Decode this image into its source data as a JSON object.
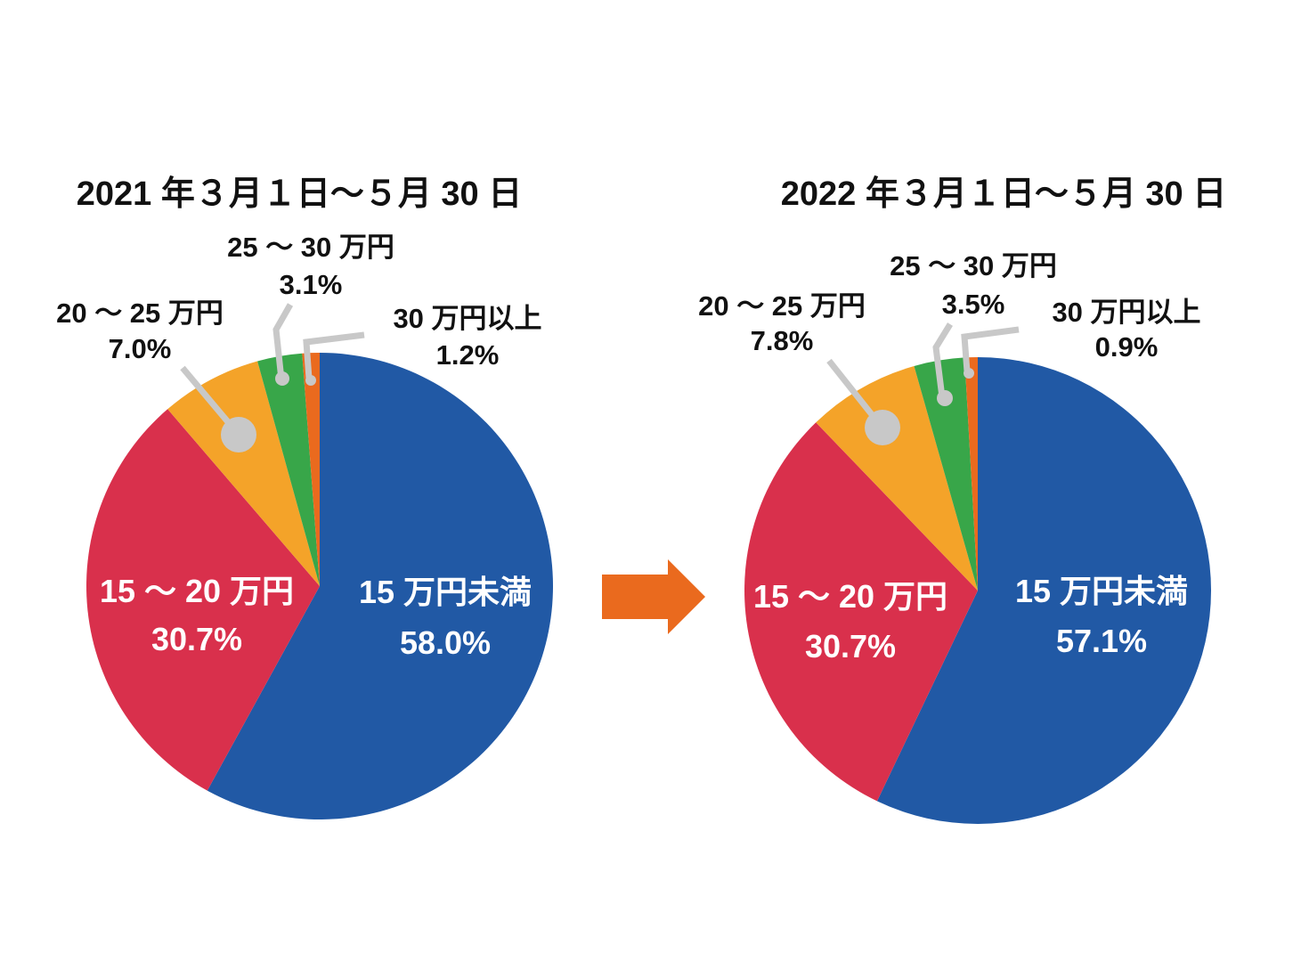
{
  "chart_data": [
    {
      "type": "pie",
      "title": "2021 年３月１日〜５月 30 日",
      "slices": [
        {
          "label": "15 万円未満",
          "value": 58.0,
          "value_text": "58.0%",
          "color": "#2159a5"
        },
        {
          "label": "15 〜 20 万円",
          "value": 30.7,
          "value_text": "30.7%",
          "color": "#d9304c"
        },
        {
          "label": "20 〜 25 万円",
          "value": 7.0,
          "value_text": "7.0%",
          "color": "#f4a329"
        },
        {
          "label": "25 〜 30 万円",
          "value": 3.1,
          "value_text": "3.1%",
          "color": "#38a649"
        },
        {
          "label": "30 万円以上",
          "value": 1.2,
          "value_text": "1.2%",
          "color": "#ea6a1e"
        }
      ]
    },
    {
      "type": "pie",
      "title": "2022 年３月１日〜５月 30 日",
      "slices": [
        {
          "label": "15 万円未満",
          "value": 57.1,
          "value_text": "57.1%",
          "color": "#2159a5"
        },
        {
          "label": "15 〜 20 万円",
          "value": 30.7,
          "value_text": "30.7%",
          "color": "#d9304c"
        },
        {
          "label": "20 〜 25 万円",
          "value": 7.8,
          "value_text": "7.8%",
          "color": "#f4a329"
        },
        {
          "label": "25 〜 30 万円",
          "value": 3.5,
          "value_text": "3.5%",
          "color": "#38a649"
        },
        {
          "label": "30 万円以上",
          "value": 0.9,
          "value_text": "0.9%",
          "color": "#ea6a1e"
        }
      ]
    }
  ],
  "colors": {
    "leader": "#c8c8c8",
    "arrow": "#ea6a1e",
    "text_dark": "#111111",
    "text_light": "#ffffff"
  }
}
